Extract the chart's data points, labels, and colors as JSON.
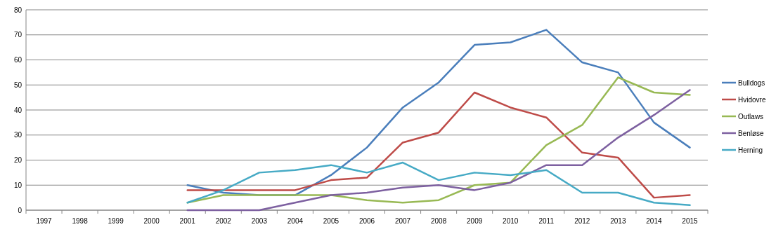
{
  "chart_data": {
    "type": "line",
    "categories": [
      "1997",
      "1998",
      "1999",
      "2000",
      "2001",
      "2002",
      "2003",
      "2004",
      "2005",
      "2006",
      "2007",
      "2008",
      "2009",
      "2010",
      "2011",
      "2012",
      "2013",
      "2014",
      "2015"
    ],
    "series": [
      {
        "name": "Bulldogs",
        "color": "#4a7ebb",
        "values": [
          null,
          null,
          null,
          null,
          10,
          7,
          6,
          6,
          14,
          25,
          41,
          51,
          66,
          67,
          72,
          59,
          55,
          35,
          25
        ]
      },
      {
        "name": "Hvidovre",
        "color": "#be4b48",
        "values": [
          null,
          null,
          null,
          null,
          8,
          8,
          8,
          8,
          12,
          13,
          27,
          31,
          47,
          41,
          37,
          23,
          21,
          5,
          6
        ]
      },
      {
        "name": "Outlaws",
        "color": "#98b954",
        "values": [
          null,
          null,
          null,
          null,
          3,
          6,
          6,
          6,
          6,
          4,
          3,
          4,
          10,
          11,
          26,
          34,
          53,
          47,
          46
        ]
      },
      {
        "name": "Benløse",
        "color": "#7d60a0",
        "values": [
          null,
          null,
          null,
          null,
          0,
          0,
          0,
          3,
          6,
          7,
          9,
          10,
          8,
          11,
          18,
          18,
          29,
          38,
          48
        ]
      },
      {
        "name": "Herning",
        "color": "#46aac5",
        "values": [
          null,
          null,
          null,
          null,
          3,
          8,
          15,
          16,
          18,
          15,
          19,
          12,
          15,
          14,
          16,
          7,
          7,
          3,
          2
        ]
      }
    ],
    "ylim": [
      0,
      80
    ],
    "yticks": [
      0,
      10,
      20,
      30,
      40,
      50,
      60,
      70,
      80
    ],
    "grid": "y",
    "legend": "right",
    "marker": "none",
    "line_style": "solid"
  }
}
